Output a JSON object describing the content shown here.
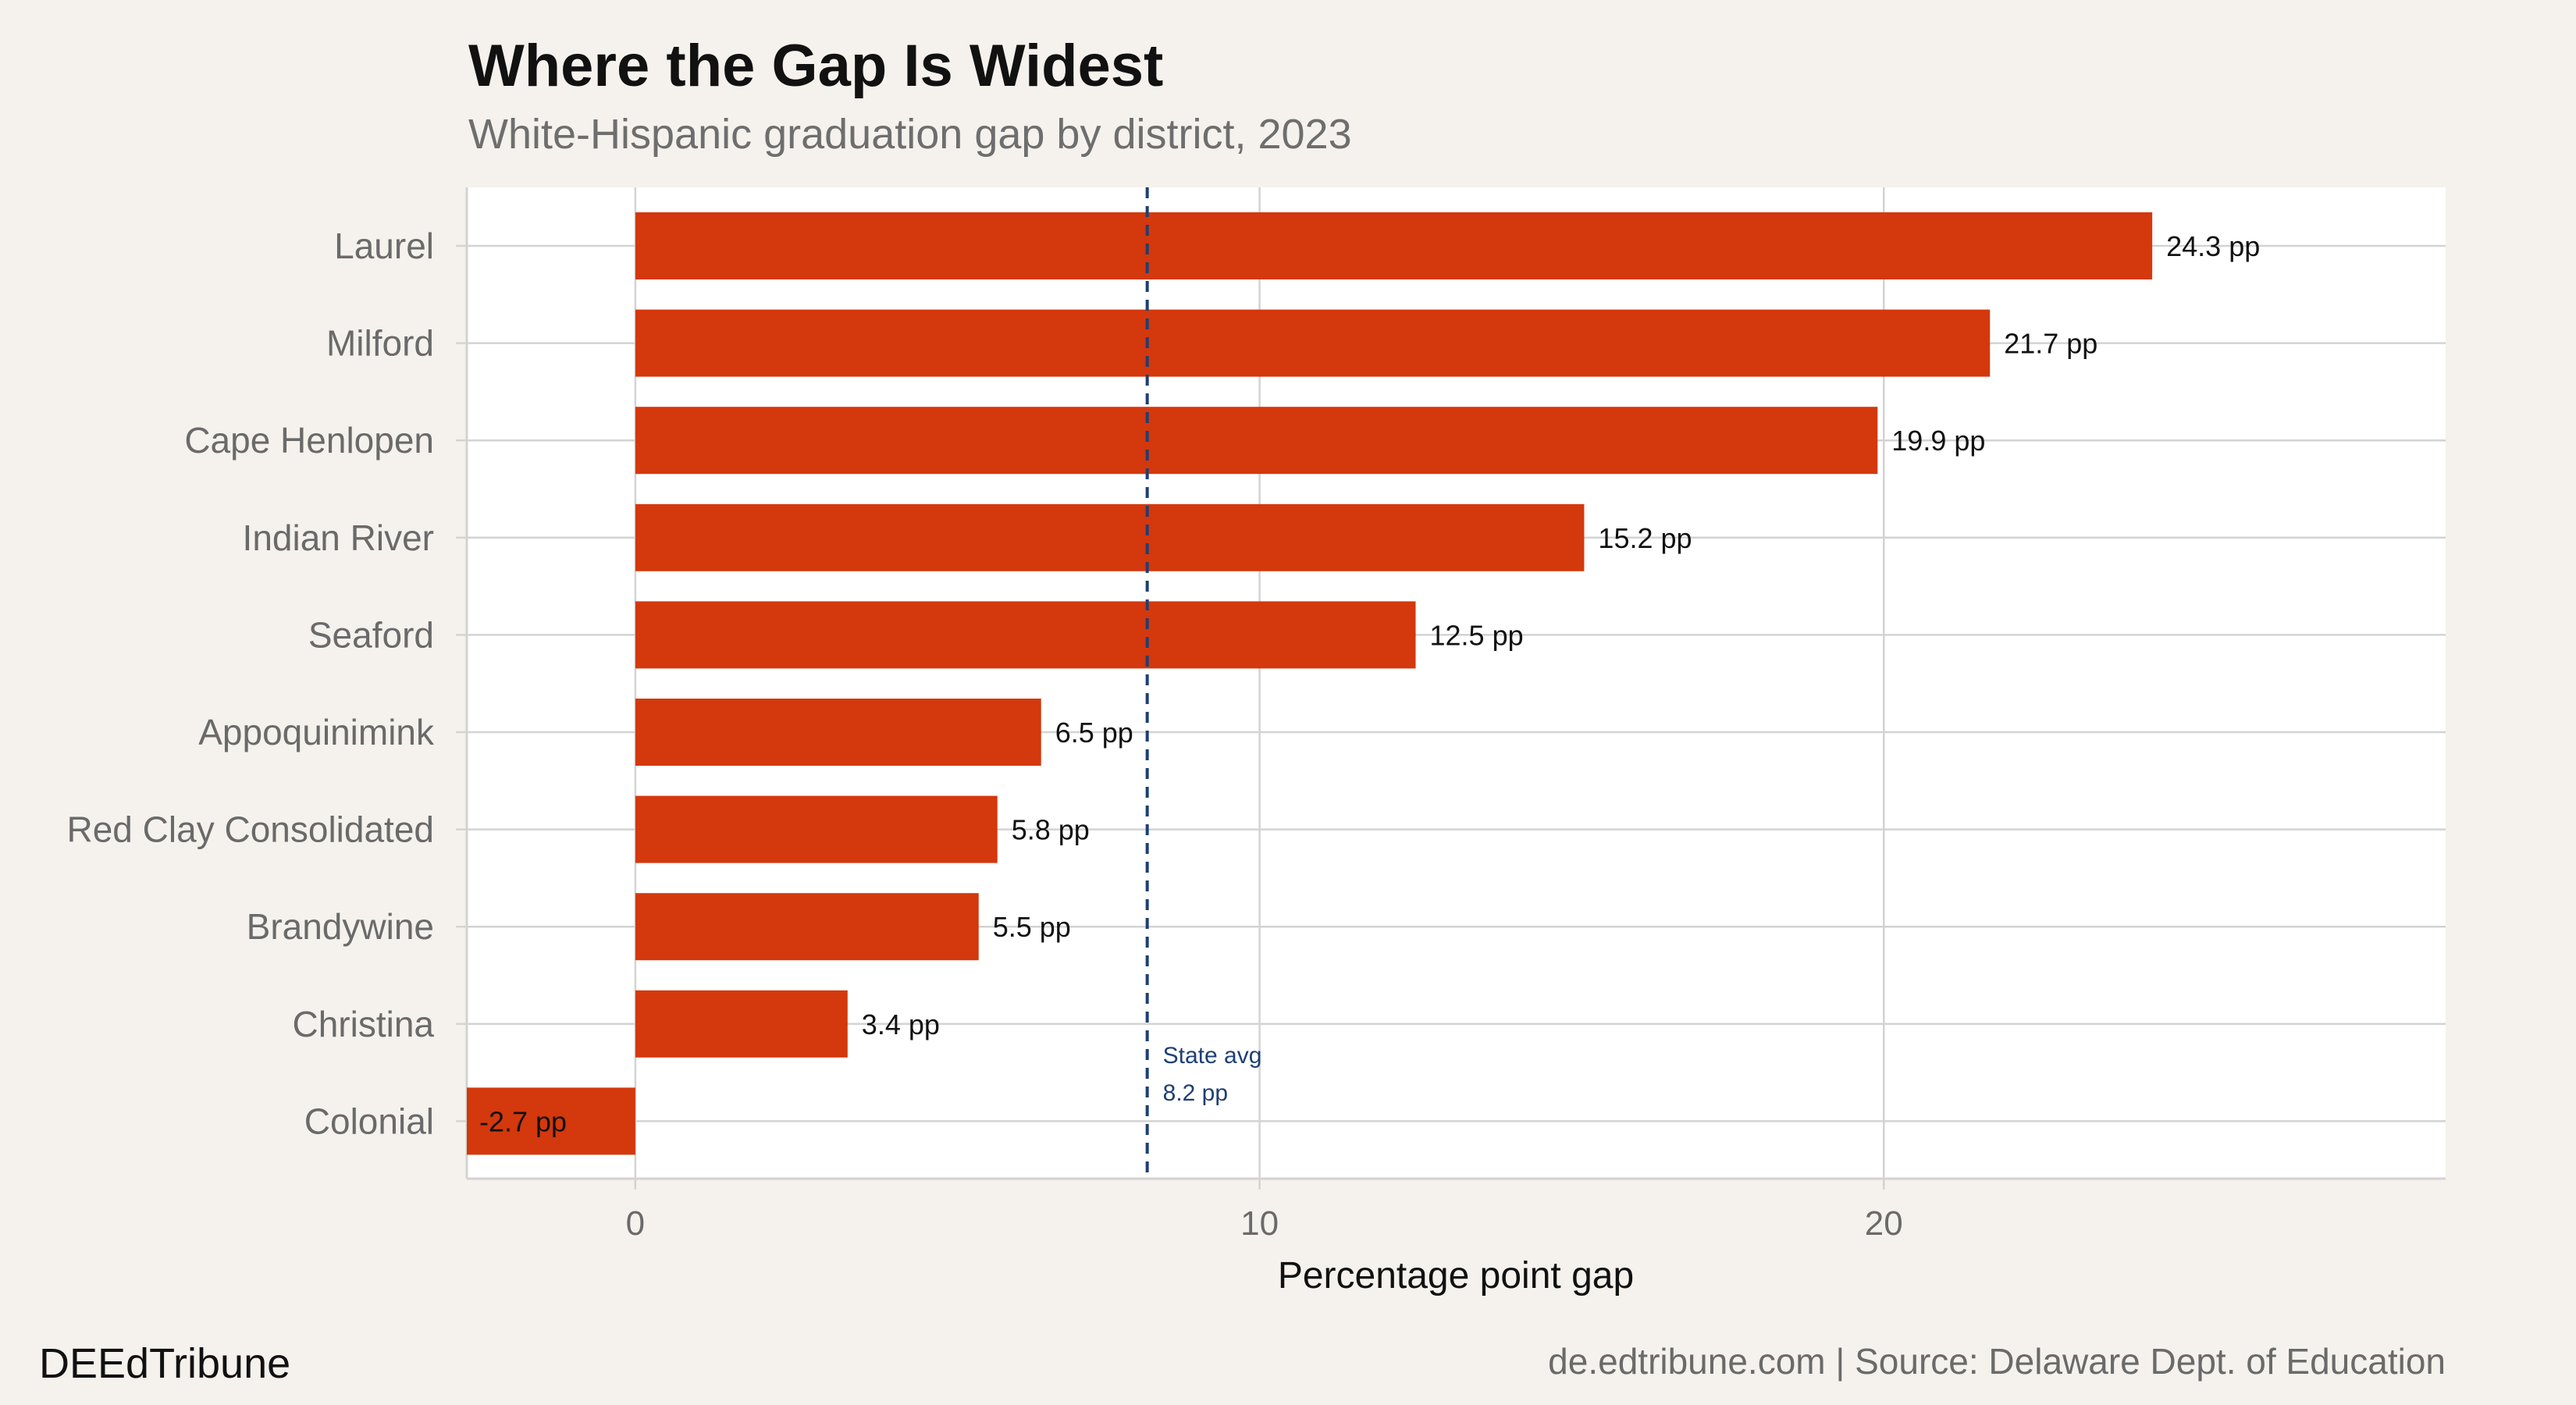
{
  "header": {
    "title": "Where the Gap Is Widest",
    "subtitle": "White-Hispanic graduation gap by district, 2023"
  },
  "footer": {
    "brand": "DEEdTribune",
    "source": "de.edtribune.com | Source: Delaware Dept. of Education"
  },
  "colors": {
    "background": "#f5f2ed",
    "panel": "#ffffff",
    "bar": "#d4380d",
    "reference": "#1f3f73",
    "grid": "#d3d3d3"
  },
  "chart_data": {
    "type": "bar",
    "orientation": "horizontal",
    "title": "Where the Gap Is Widest",
    "subtitle": "White-Hispanic graduation gap by district, 2023",
    "xlabel": "Percentage point gap",
    "ylabel": "",
    "xlim": [
      -2.7,
      29
    ],
    "xticks": [
      0,
      10,
      20
    ],
    "grid": true,
    "legend": "none",
    "categories": [
      "Laurel",
      "Milford",
      "Cape Henlopen",
      "Indian River",
      "Seaford",
      "Appoquinimink",
      "Red Clay Consolidated",
      "Brandywine",
      "Christina",
      "Colonial"
    ],
    "values": [
      24.3,
      21.7,
      19.9,
      15.2,
      12.5,
      6.5,
      5.8,
      5.5,
      3.4,
      -2.7
    ],
    "data_labels": [
      "24.3 pp",
      "21.7 pp",
      "19.9 pp",
      "15.2 pp",
      "12.5 pp",
      "6.5 pp",
      "5.8 pp",
      "5.5 pp",
      "3.4 pp",
      "-2.7 pp"
    ],
    "reference_line": {
      "value": 8.2,
      "label_line1": "State avg",
      "label_line2": "8.2 pp"
    }
  }
}
